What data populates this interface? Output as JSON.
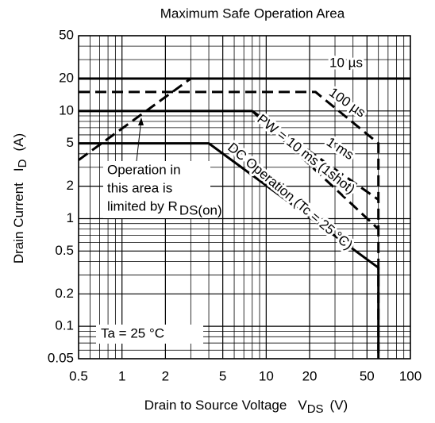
{
  "chart_data": {
    "type": "line",
    "title": "Maximum Safe Operation Area",
    "x_label": {
      "text": "Drain to Source Voltage",
      "symbol": "V",
      "subscript": "DS",
      "unit": "(V)"
    },
    "y_label": {
      "text": "Drain Current",
      "symbol": "I",
      "subscript": "D",
      "unit": "(A)"
    },
    "log_x": true,
    "log_y": true,
    "grid": true,
    "xlim": [
      0.5,
      100
    ],
    "ylim": [
      0.05,
      50
    ],
    "xticks": [
      0.5,
      1,
      2,
      5,
      10,
      20,
      50,
      100
    ],
    "yticks": [
      0.05,
      0.1,
      0.2,
      0.5,
      1,
      2,
      5,
      10,
      20,
      50
    ],
    "x_minor_ticks": [
      0.6,
      0.7,
      0.8,
      0.9,
      3,
      4,
      6,
      7,
      8,
      9,
      30,
      40,
      60,
      70,
      80,
      90
    ],
    "y_minor_ticks": [
      0.06,
      0.07,
      0.08,
      0.09,
      0.3,
      0.4,
      0.6,
      0.7,
      0.8,
      0.9,
      3,
      4,
      6,
      7,
      8,
      9,
      30,
      40
    ],
    "series": [
      {
        "name": "10 µs",
        "color": "#000000",
        "dash": false,
        "x": [
          0.5,
          100
        ],
        "values": [
          20,
          20
        ]
      },
      {
        "name": "100 µs",
        "color": "#000000",
        "dash": true,
        "x": [
          0.5,
          22,
          60,
          60
        ],
        "values": [
          15,
          15,
          5,
          0.05
        ]
      },
      {
        "name": "1 ms",
        "color": "#000000",
        "dash": [
          false,
          true
        ],
        "x": [
          0.5,
          8,
          60
        ],
        "values": [
          10,
          10,
          1.5
        ]
      },
      {
        "name": "PW = 10 ms (1shot)",
        "color": "#000000",
        "dash": true,
        "x": [
          8,
          60
        ],
        "values": [
          10,
          0.8
        ]
      },
      {
        "name": "DC Operation (Tc = 25 °C)",
        "color": "#000000",
        "dash": false,
        "x": [
          0.5,
          4,
          60,
          60
        ],
        "values": [
          5,
          5,
          0.35,
          0.05
        ]
      }
    ],
    "limit_line": {
      "color": "#000000",
      "dash": true,
      "x": [
        0.5,
        3
      ],
      "values": [
        3.5,
        20
      ]
    },
    "annotations": [
      {
        "lines": [
          "Operation in",
          "this area is",
          "limited by R"
        ],
        "subscript": "DS(on)"
      },
      {
        "text": "Ta = 25 °C"
      }
    ]
  }
}
